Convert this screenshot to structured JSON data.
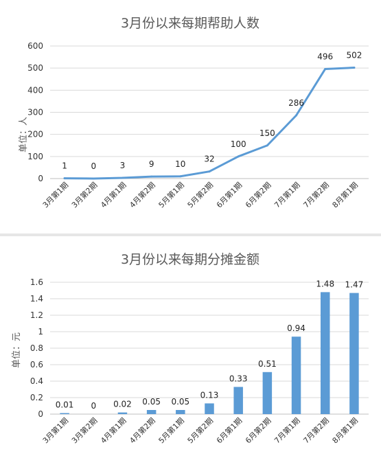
{
  "chart_data": [
    {
      "type": "line",
      "title": "3月份以来每期帮助人数",
      "ylabel": "单位：人",
      "xlabel": "",
      "categories": [
        "3月第1期",
        "3月第2期",
        "4月第1期",
        "4月第2期",
        "5月第1期",
        "5月第2期",
        "6月第1期",
        "6月第2期",
        "7月第1期",
        "7月第2期",
        "8月第1期"
      ],
      "values": [
        1,
        0,
        3,
        9,
        10,
        32,
        100,
        150,
        286,
        496,
        502
      ],
      "data_labels": [
        "1",
        "0",
        "3",
        "9",
        "10",
        "32",
        "100",
        "150",
        "286",
        "496",
        "502"
      ],
      "yticks": [
        0,
        100,
        200,
        300,
        400,
        500,
        600
      ],
      "ytick_labels": [
        "0",
        "100",
        "200",
        "300",
        "400",
        "500",
        "600"
      ],
      "ylim": [
        0,
        600
      ],
      "grid": true,
      "color": "#5b9bd5"
    },
    {
      "type": "bar",
      "title": "3月份以来每期分摊金额",
      "ylabel": "单位：元",
      "xlabel": "",
      "categories": [
        "3月第1期",
        "3月第2期",
        "4月第1期",
        "4月第2期",
        "5月第1期",
        "5月第2期",
        "6月第1期",
        "6月第2期",
        "7月第1期",
        "7月第2期",
        "8月第1期"
      ],
      "values": [
        0.01,
        0,
        0.02,
        0.05,
        0.05,
        0.13,
        0.33,
        0.51,
        0.94,
        1.48,
        1.47
      ],
      "data_labels": [
        "0.01",
        "0",
        "0.02",
        "0.05",
        "0.05",
        "0.13",
        "0.33",
        "0.51",
        "0.94",
        "1.48",
        "1.47"
      ],
      "yticks": [
        0,
        0.2,
        0.4,
        0.6,
        0.8,
        1,
        1.2,
        1.4,
        1.6
      ],
      "ytick_labels": [
        "0",
        "0.2",
        "0.4",
        "0.6",
        "0.8",
        "1",
        "1.2",
        "1.4",
        "1.6"
      ],
      "ylim": [
        0,
        1.6
      ],
      "grid": true,
      "color": "#5b9bd5"
    }
  ]
}
